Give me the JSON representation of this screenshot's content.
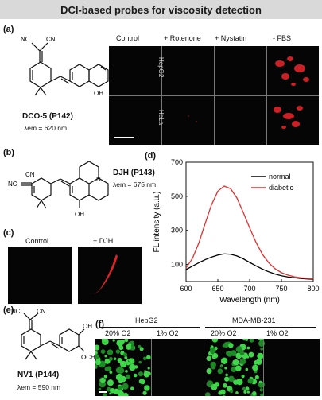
{
  "title": "DCI-based probes for viscosity detection",
  "panels": {
    "a": {
      "label": "(a)",
      "probe_name": "DCO-5 (P142)",
      "emission": "λem = 620 nm",
      "columns": [
        "Control",
        "+ Rotenone",
        "+ Nystatin",
        "- FBS"
      ],
      "rows": [
        "HepG2",
        "HeLa"
      ]
    },
    "b": {
      "label": "(b)",
      "probe_name": "DJH (P143)",
      "emission": "λem = 675 nm"
    },
    "c": {
      "label": "(c)",
      "columns": [
        "Control",
        "+ DJH"
      ]
    },
    "d": {
      "label": "(d)"
    },
    "e": {
      "label": "(e)",
      "probe_name": "NV1 (P144)",
      "emission": "λem = 590 nm"
    },
    "f": {
      "label": "(f)",
      "groups": [
        "HepG2",
        "MDA-MB-231"
      ],
      "conditions": [
        "20% O2",
        "1% O2",
        "20% O2",
        "1% O2"
      ]
    }
  },
  "chemistry": {
    "nc": "NC",
    "cn": "CN",
    "oh": "OH",
    "n": "N",
    "och3": "OCH3"
  },
  "chart_data": {
    "type": "line",
    "xlabel": "Wavelength (nm)",
    "ylabel": "FL intensity (a.u.)",
    "xlim": [
      600,
      800
    ],
    "ylim": [
      0,
      700
    ],
    "xticks": [
      600,
      650,
      700,
      750,
      800
    ],
    "yticks": [
      100,
      300,
      500,
      700
    ],
    "legend_position": "top-right",
    "series": [
      {
        "name": "normal",
        "color": "#000000",
        "x": [
          600,
          610,
          620,
          630,
          640,
          650,
          660,
          670,
          680,
          690,
          700,
          710,
          720,
          730,
          740,
          750,
          760,
          770,
          780,
          790,
          800
        ],
        "values": [
          70,
          90,
          110,
          128,
          143,
          155,
          162,
          160,
          150,
          133,
          112,
          92,
          73,
          57,
          44,
          34,
          27,
          22,
          18,
          15,
          13
        ]
      },
      {
        "name": "diabetic",
        "color": "#e03030",
        "x": [
          600,
          610,
          620,
          630,
          640,
          650,
          660,
          670,
          680,
          690,
          700,
          710,
          720,
          730,
          740,
          750,
          760,
          770,
          780,
          790,
          800
        ],
        "values": [
          80,
          135,
          225,
          340,
          450,
          530,
          560,
          545,
          490,
          405,
          315,
          230,
          160,
          110,
          75,
          52,
          38,
          28,
          22,
          18,
          15
        ]
      }
    ]
  }
}
